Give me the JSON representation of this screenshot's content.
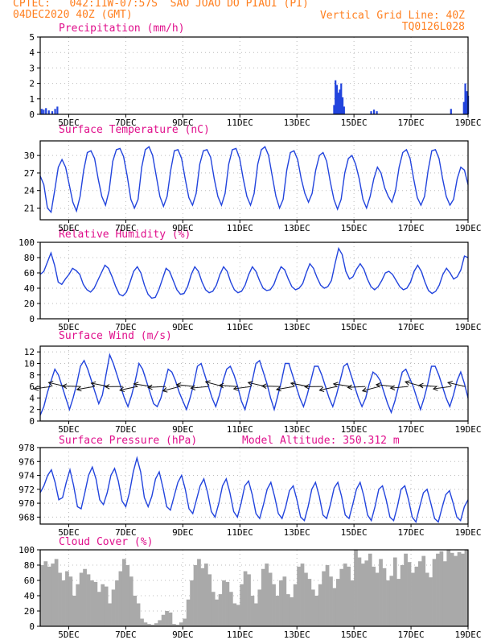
{
  "header": {
    "line1": "CPTEC:   042:11W-07:57S  SAO JOAO DO PIAUI (PI)",
    "line2": "04DEC2020 40Z (GMT)",
    "right1": "Vertical Grid Line: 40Z",
    "right2": "TQ0126L028"
  },
  "colors": {
    "header": "#ff7f1f",
    "panel_title": "#e0108c",
    "line": "#2244dd",
    "bar": "#2244dd",
    "cloud": "#a9a9a9",
    "grid": "#bbbbbb"
  },
  "chart_data": [
    {
      "type": "bar",
      "title": "Precipitation (mm/h)",
      "x_ticks": [
        "5DEC",
        "7DEC",
        "9DEC",
        "11DEC",
        "13DEC",
        "15DEC",
        "17DEC",
        "19DEC"
      ],
      "ylim": [
        0,
        5
      ],
      "yticks": [
        0,
        1,
        2,
        3,
        4,
        5
      ],
      "grid": true,
      "events": [
        {
          "day": 4.05,
          "v": 0.35
        },
        {
          "day": 4.12,
          "v": 0.3
        },
        {
          "day": 4.2,
          "v": 0.4
        },
        {
          "day": 4.3,
          "v": 0.25
        },
        {
          "day": 4.42,
          "v": 0.2
        },
        {
          "day": 4.52,
          "v": 0.35
        },
        {
          "day": 4.6,
          "v": 0.5
        },
        {
          "day": 14.3,
          "v": 0.6
        },
        {
          "day": 14.35,
          "v": 2.2
        },
        {
          "day": 14.4,
          "v": 1.9
        },
        {
          "day": 14.45,
          "v": 1.4
        },
        {
          "day": 14.5,
          "v": 1.6
        },
        {
          "day": 14.55,
          "v": 2.0
        },
        {
          "day": 14.6,
          "v": 1.1
        },
        {
          "day": 14.65,
          "v": 0.5
        },
        {
          "day": 15.6,
          "v": 0.2
        },
        {
          "day": 15.7,
          "v": 0.3
        },
        {
          "day": 15.8,
          "v": 0.2
        },
        {
          "day": 18.4,
          "v": 0.35
        },
        {
          "day": 18.85,
          "v": 0.8
        },
        {
          "day": 18.9,
          "v": 2.0
        },
        {
          "day": 18.95,
          "v": 1.5
        },
        {
          "day": 19.0,
          "v": 1.2
        }
      ]
    },
    {
      "type": "line",
      "title": "Surface Temperature (nC)",
      "x_ticks": [
        "5DEC",
        "7DEC",
        "9DEC",
        "11DEC",
        "13DEC",
        "15DEC",
        "17DEC",
        "19DEC"
      ],
      "ylim": [
        19,
        32.5
      ],
      "yticks": [
        21,
        24,
        27,
        30
      ],
      "grid": true,
      "values": [
        26.5,
        25,
        21,
        20.3,
        24,
        28,
        29.3,
        28,
        25,
        22,
        20.5,
        23,
        27.5,
        30.5,
        30.8,
        29.5,
        26,
        23,
        21.5,
        24,
        29,
        31,
        31.2,
        29.8,
        26.5,
        22.5,
        21,
        22.5,
        28,
        31,
        31.5,
        30,
        26.5,
        23,
        21.3,
        23,
        27.5,
        30.8,
        31,
        29.5,
        26,
        22.8,
        21.5,
        23.5,
        28.5,
        30.8,
        31,
        29.7,
        26,
        23,
        21.5,
        23.5,
        28.5,
        31,
        31.2,
        29.5,
        26,
        23,
        21.5,
        23.5,
        28.5,
        31,
        31.5,
        30,
        26.5,
        23,
        21,
        22.5,
        27.5,
        30.5,
        30.8,
        29.3,
        26,
        23.5,
        22,
        23.5,
        27.5,
        30,
        30.5,
        29,
        25.5,
        22.5,
        20.8,
        22.5,
        27,
        29.5,
        30,
        28.5,
        26,
        22.5,
        21,
        23,
        26,
        28,
        27,
        24.5,
        23,
        22,
        24,
        28,
        30.5,
        31,
        29.5,
        26,
        22.8,
        21.5,
        23,
        27.5,
        30.8,
        31,
        29.5,
        26,
        23,
        21.5,
        22.5,
        26,
        28,
        27.5,
        25
      ]
    },
    {
      "type": "line",
      "title": "Relative Humidity (%)",
      "x_ticks": [
        "5DEC",
        "7DEC",
        "9DEC",
        "11DEC",
        "13DEC",
        "15DEC",
        "17DEC",
        "19DEC"
      ],
      "ylim": [
        0,
        100
      ],
      "yticks": [
        0,
        20,
        40,
        60,
        80,
        100
      ],
      "grid": true,
      "values": [
        58,
        62,
        74,
        86,
        70,
        48,
        45,
        52,
        58,
        66,
        63,
        58,
        45,
        38,
        35,
        40,
        50,
        60,
        70,
        66,
        55,
        42,
        32,
        30,
        35,
        48,
        62,
        68,
        60,
        44,
        32,
        27,
        28,
        38,
        52,
        66,
        62,
        50,
        38,
        32,
        33,
        42,
        58,
        68,
        62,
        48,
        38,
        34,
        36,
        44,
        58,
        68,
        62,
        48,
        38,
        34,
        36,
        44,
        58,
        68,
        62,
        50,
        40,
        37,
        38,
        45,
        58,
        68,
        64,
        52,
        42,
        38,
        40,
        46,
        60,
        72,
        66,
        54,
        44,
        40,
        42,
        50,
        72,
        92,
        84,
        62,
        52,
        55,
        65,
        72,
        65,
        52,
        42,
        38,
        42,
        50,
        60,
        62,
        58,
        50,
        42,
        38,
        40,
        48,
        62,
        70,
        62,
        48,
        37,
        33,
        36,
        44,
        58,
        66,
        60,
        52,
        55,
        64,
        82,
        80
      ]
    },
    {
      "type": "line",
      "title": "Surface Wind (m/s)",
      "x_ticks": [
        "5DEC",
        "7DEC",
        "9DEC",
        "11DEC",
        "13DEC",
        "15DEC",
        "17DEC",
        "19DEC"
      ],
      "ylim": [
        0,
        13
      ],
      "yticks": [
        0,
        2,
        4,
        6,
        8,
        10,
        12
      ],
      "grid": true,
      "values": [
        1,
        2.5,
        5,
        7,
        9,
        8,
        6,
        4,
        2,
        4,
        6.5,
        9.5,
        10.5,
        9,
        7,
        5,
        3,
        4.5,
        8,
        11.5,
        10,
        8,
        6,
        4,
        2.5,
        4.5,
        7,
        10,
        9,
        7,
        5,
        3,
        2.5,
        4,
        6.5,
        9,
        8.5,
        7,
        5,
        3.5,
        2,
        4,
        6.5,
        9.5,
        10,
        8,
        6,
        4,
        2.5,
        4.5,
        7,
        9,
        9.5,
        8,
        6,
        3.5,
        2,
        4.5,
        7,
        10,
        10.5,
        8.5,
        6.5,
        4,
        2,
        4.5,
        7,
        10,
        10,
        8,
        6,
        4,
        2.5,
        4.5,
        7,
        9.5,
        9.5,
        8,
        6,
        4,
        2.5,
        4.5,
        7,
        9.5,
        10,
        8,
        6,
        4,
        2.5,
        4,
        6.5,
        8.5,
        8,
        7,
        5,
        3,
        1.5,
        3.5,
        6,
        8.5,
        9,
        7.5,
        6,
        4,
        2,
        4,
        6.5,
        9.5,
        9.5,
        8,
        6,
        4,
        2.5,
        4.5,
        7,
        8.5,
        6.5,
        4
      ]
    },
    {
      "type": "line",
      "title": "Surface Pressure (hPa)",
      "annotation": "Model Altitude: 350.312 m",
      "x_ticks": [
        "5DEC",
        "7DEC",
        "9DEC",
        "11DEC",
        "13DEC",
        "15DEC",
        "17DEC",
        "19DEC"
      ],
      "ylim": [
        967,
        978
      ],
      "yticks": [
        968,
        970,
        972,
        974,
        976,
        978
      ],
      "grid": true,
      "values": [
        971.5,
        972.5,
        974,
        974.8,
        973,
        970.5,
        970.8,
        973,
        974.8,
        972.5,
        969.5,
        969.2,
        971.5,
        974,
        975.2,
        973.5,
        970.5,
        969.8,
        971.5,
        974,
        975,
        973.2,
        970.3,
        969.5,
        971.5,
        974.5,
        976.5,
        974.5,
        970.8,
        969.5,
        971,
        973.5,
        974.5,
        972.2,
        969.5,
        969,
        971,
        973,
        974,
        972,
        969.2,
        968.5,
        970.5,
        972.5,
        973.5,
        971.5,
        968.8,
        968,
        970,
        972.5,
        973.5,
        971.5,
        968.8,
        968,
        970,
        972.5,
        973.2,
        971.2,
        968.5,
        967.8,
        969.8,
        972,
        973,
        971,
        968.5,
        967.8,
        969.5,
        971.8,
        972.5,
        970.5,
        968,
        967.5,
        969.5,
        972,
        973,
        971,
        968.3,
        967.8,
        969.8,
        972.2,
        973,
        971,
        968.3,
        967.8,
        969.8,
        972,
        973,
        971,
        968.3,
        967.5,
        969.5,
        972,
        972.5,
        970.5,
        968,
        967.5,
        969.5,
        972,
        972.5,
        970.5,
        968,
        967.3,
        969.5,
        971.5,
        972,
        970,
        967.8,
        967.3,
        969.3,
        971.2,
        971.8,
        970,
        968,
        967.5,
        969.5,
        970.5
      ]
    },
    {
      "type": "bar",
      "title": "Cloud Cover (%)",
      "x_ticks": [
        "5DEC",
        "7DEC",
        "9DEC",
        "11DEC",
        "13DEC",
        "15DEC",
        "17DEC",
        "19DEC"
      ],
      "ylim": [
        0,
        100
      ],
      "yticks": [
        0,
        20,
        40,
        60,
        80,
        100
      ],
      "grid": true,
      "values": [
        80,
        85,
        78,
        82,
        88,
        70,
        60,
        72,
        65,
        40,
        55,
        70,
        75,
        68,
        60,
        58,
        45,
        55,
        52,
        30,
        48,
        60,
        72,
        88,
        80,
        65,
        40,
        30,
        10,
        5,
        3,
        2,
        4,
        8,
        15,
        20,
        18,
        3,
        2,
        5,
        10,
        35,
        60,
        80,
        88,
        76,
        82,
        68,
        45,
        35,
        42,
        60,
        58,
        45,
        30,
        28,
        55,
        72,
        68,
        40,
        30,
        48,
        75,
        82,
        70,
        55,
        40,
        60,
        65,
        42,
        38,
        55,
        78,
        82,
        70,
        62,
        48,
        40,
        55,
        72,
        80,
        65,
        50,
        62,
        75,
        82,
        78,
        60,
        100,
        90,
        82,
        86,
        95,
        78,
        70,
        88,
        76,
        60,
        66,
        90,
        62,
        80,
        95,
        84,
        70,
        78,
        85,
        92,
        70,
        64,
        88,
        95,
        98,
        85,
        100,
        96,
        92,
        97,
        95,
        100
      ]
    }
  ]
}
